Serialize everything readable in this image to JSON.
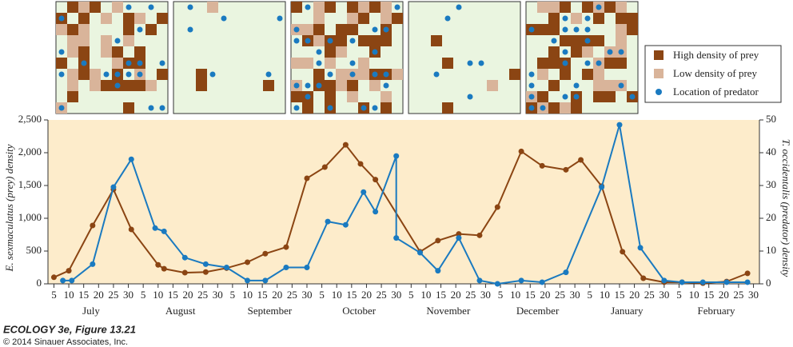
{
  "chart_data": {
    "type": "line",
    "ylabel": "E. sexmaculatus (prey) density",
    "y2label": "T. occidentalis (predator) density",
    "xlim": [
      3,
      242
    ],
    "xticks": [
      {
        "value": 5,
        "label": "5"
      },
      {
        "value": 10,
        "label": "10"
      },
      {
        "value": 15,
        "label": "15"
      },
      {
        "value": 20,
        "label": "20"
      },
      {
        "value": 25,
        "label": "25"
      },
      {
        "value": 30,
        "label": "30"
      },
      {
        "value": 35,
        "label": "5"
      },
      {
        "value": 40,
        "label": "10"
      },
      {
        "value": 45,
        "label": "15"
      },
      {
        "value": 50,
        "label": "20"
      },
      {
        "value": 55,
        "label": "25"
      },
      {
        "value": 60,
        "label": "30"
      },
      {
        "value": 65,
        "label": "5"
      },
      {
        "value": 70,
        "label": "10"
      },
      {
        "value": 75,
        "label": "15"
      },
      {
        "value": 80,
        "label": "20"
      },
      {
        "value": 85,
        "label": "25"
      },
      {
        "value": 90,
        "label": "30"
      },
      {
        "value": 95,
        "label": "5"
      },
      {
        "value": 100,
        "label": "10"
      },
      {
        "value": 105,
        "label": "15"
      },
      {
        "value": 110,
        "label": "20"
      },
      {
        "value": 115,
        "label": "25"
      },
      {
        "value": 120,
        "label": "30"
      },
      {
        "value": 125,
        "label": "5"
      },
      {
        "value": 130,
        "label": "10"
      },
      {
        "value": 135,
        "label": "15"
      },
      {
        "value": 140,
        "label": "20"
      },
      {
        "value": 145,
        "label": "25"
      },
      {
        "value": 150,
        "label": "30"
      },
      {
        "value": 155,
        "label": "5"
      },
      {
        "value": 160,
        "label": "10"
      },
      {
        "value": 165,
        "label": "15"
      },
      {
        "value": 170,
        "label": "20"
      },
      {
        "value": 175,
        "label": "25"
      },
      {
        "value": 180,
        "label": "30"
      },
      {
        "value": 185,
        "label": "5"
      },
      {
        "value": 190,
        "label": "10"
      },
      {
        "value": 195,
        "label": "15"
      },
      {
        "value": 200,
        "label": "20"
      },
      {
        "value": 205,
        "label": "25"
      },
      {
        "value": 210,
        "label": "30"
      },
      {
        "value": 215,
        "label": "5"
      },
      {
        "value": 220,
        "label": "10"
      },
      {
        "value": 225,
        "label": "15"
      },
      {
        "value": 230,
        "label": "20"
      },
      {
        "value": 235,
        "label": "25"
      },
      {
        "value": 240,
        "label": "30"
      }
    ],
    "months": [
      "July",
      "August",
      "September",
      "October",
      "November",
      "December",
      "January",
      "February"
    ],
    "ylim": [
      0,
      2500
    ],
    "yticks": [
      0,
      500,
      {
        "value": 1000,
        "label": "1,000"
      },
      {
        "value": 1500,
        "label": "1,500"
      },
      {
        "value": 2000,
        "label": "2,000"
      },
      {
        "value": 2500,
        "label": "2,500"
      }
    ],
    "y2lim": [
      0,
      50
    ],
    "y2ticks": [
      0,
      10,
      20,
      30,
      40,
      50
    ],
    "series": [
      {
        "color": "#8b4513",
        "x": [
          5,
          10,
          18,
          25,
          31,
          40,
          42,
          49,
          56,
          63,
          70,
          76,
          83,
          90,
          96,
          103,
          108,
          113,
          128,
          134,
          141,
          148,
          154,
          162,
          169,
          177,
          182,
          189,
          196,
          203,
          210,
          216,
          223,
          231,
          238
        ],
        "values": [
          100,
          200,
          890,
          1440,
          830,
          290,
          230,
          170,
          180,
          240,
          330,
          460,
          560,
          1610,
          1780,
          2120,
          1830,
          1590,
          490,
          660,
          760,
          740,
          1170,
          2020,
          1800,
          1740,
          1890,
          1490,
          490,
          85,
          25,
          25,
          10,
          35,
          160
        ]
      },
      {
        "color": "#1a7ac0",
        "axis": "y2",
        "x": [
          8,
          11,
          18,
          25,
          31,
          39,
          42,
          49,
          56,
          63,
          70,
          76,
          83,
          90,
          97,
          103,
          109,
          113,
          120,
          120,
          128,
          134,
          141,
          148,
          154,
          162,
          169,
          177,
          189,
          195,
          202,
          210,
          216,
          223,
          231,
          238
        ],
        "values": [
          1,
          1,
          6,
          29.5,
          38,
          17,
          16,
          8,
          6,
          5,
          1,
          1,
          5,
          5,
          19,
          18,
          28,
          22,
          39,
          14,
          9.5,
          4,
          14,
          1,
          0,
          1,
          0.5,
          3.5,
          29.5,
          48.5,
          11,
          1,
          0.5,
          0.5,
          0.5,
          0.5
        ]
      }
    ]
  },
  "legend": [
    "High density of prey",
    "Low density of prey",
    "Location of predator"
  ],
  "caption": [
    "ECOLOGY 3e, Figure 13.21",
    "© 2014 Sinauer Associates, Inc."
  ]
}
